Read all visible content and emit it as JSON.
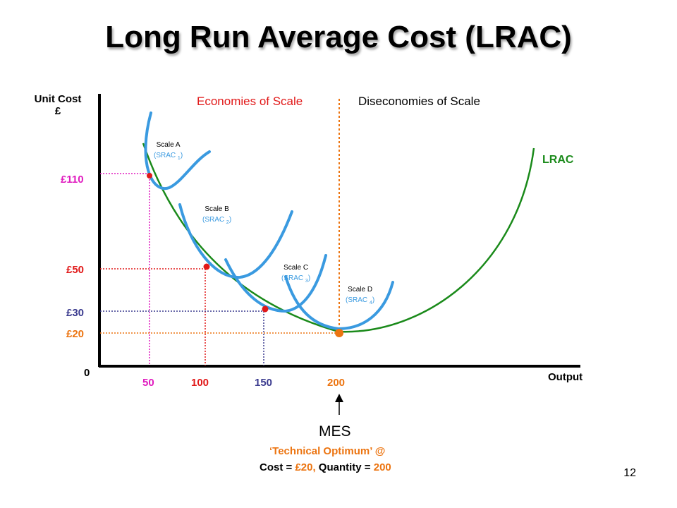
{
  "title": "Long Run Average Cost (LRAC)",
  "axes": {
    "y_label_line1": "Unit Cost",
    "y_label_line2": "£",
    "x_label": "Output",
    "origin": "0"
  },
  "regions": {
    "left": "Economies of Scale",
    "right": "Diseconomies of Scale"
  },
  "lrac_label": "LRAC",
  "cost_ticks": [
    {
      "label": "£110",
      "color": "#e01bbf"
    },
    {
      "label": "£50",
      "color": "#e11919"
    },
    {
      "label": "£30",
      "color": "#3b3b8f"
    },
    {
      "label": "£20",
      "color": "#ec7410"
    }
  ],
  "output_ticks": [
    {
      "label": "50",
      "color": "#e01bbf"
    },
    {
      "label": "100",
      "color": "#e11919"
    },
    {
      "label": "150",
      "color": "#3b3b8f"
    },
    {
      "label": "200",
      "color": "#ec7410"
    }
  ],
  "scales": [
    {
      "name": "Scale A",
      "srac": "(SRAC ",
      "sub": "1",
      "close": ")"
    },
    {
      "name": "Scale B",
      "srac": "(SRAC ",
      "sub": "2",
      "close": ")"
    },
    {
      "name": "Scale C",
      "srac": "(SRAC ",
      "sub": "3",
      "close": ")"
    },
    {
      "name": "Scale D",
      "srac": "(SRAC ",
      "sub": "4",
      "close": ")"
    }
  ],
  "mes": {
    "heading": "MES",
    "line2": "‘Technical Optimum’ @",
    "cost_prefix": "Cost = ",
    "cost_value": "£20,",
    "qty_prefix": " Quantity = ",
    "qty_value": "200"
  },
  "slide_number": "12",
  "colors": {
    "lrac": "#1a8a1a",
    "srac": "#3a9ae0",
    "economies": "#e11919",
    "mes_orange": "#ec7410",
    "axis": "#000000"
  }
}
